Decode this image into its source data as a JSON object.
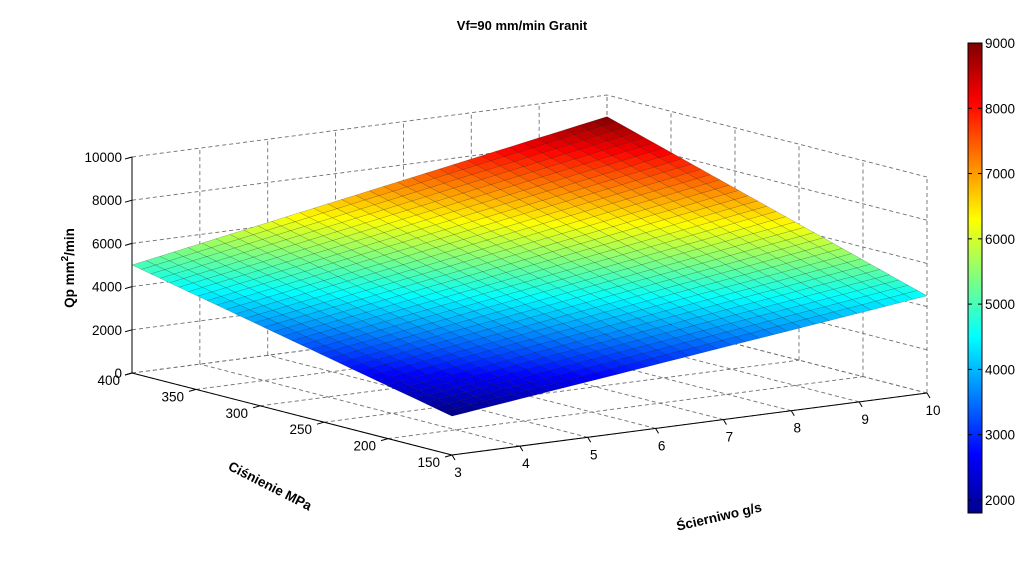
{
  "chart_data": {
    "type": "surface",
    "title": "Vf=90 mm/min Granit",
    "xlabel": "Ścierniwo g/s",
    "ylabel": "Ciśnienie MPa",
    "zlabel": "Qp mm",
    "zlabel_sup": "2",
    "zlabel_tail": "/min",
    "xlim": [
      3,
      10
    ],
    "ylim": [
      150,
      400
    ],
    "zlim": [
      0,
      10000
    ],
    "x_ticks": [
      "3",
      "4",
      "5",
      "6",
      "7",
      "8",
      "9",
      "10"
    ],
    "y_ticks": [
      "150",
      "200",
      "250",
      "300",
      "350",
      "400"
    ],
    "z_ticks": [
      "0",
      "2000",
      "4000",
      "6000",
      "8000",
      "10000"
    ],
    "grid": true,
    "colormap": "jet",
    "colorbar": {
      "min": 1800,
      "max": 9000,
      "ticks": [
        "2000",
        "3000",
        "4000",
        "5000",
        "6000",
        "7000",
        "8000",
        "9000"
      ]
    },
    "corner_values": [
      {
        "abrasive": 3,
        "pressure": 150,
        "qp": 1800
      },
      {
        "abrasive": 10,
        "pressure": 150,
        "qp": 4500
      },
      {
        "abrasive": 3,
        "pressure": 400,
        "qp": 5000
      },
      {
        "abrasive": 10,
        "pressure": 400,
        "qp": 9000
      }
    ]
  }
}
